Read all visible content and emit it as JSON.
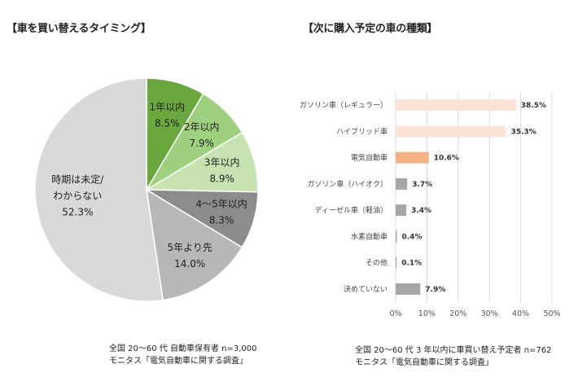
{
  "left_panel": {
    "title": "【車を買い替えるタイミング】",
    "note_line1": "全国 20～60 代 自動車保有者  n=3,000",
    "note_line2": "モニタス「電気自動車に関する調査」"
  },
  "right_panel": {
    "title": "【次に購入予定の車の種類】",
    "note_line1": "全国 20～60 代 3 年以内に車買い替え予定者  n=762",
    "note_line2": "モニタス「電気自動車に関する調査」"
  },
  "chart_data": [
    {
      "type": "pie",
      "title": "【車を買い替えるタイミング】",
      "unit": "%",
      "slices": [
        {
          "label": "1年以内",
          "value": 8.5,
          "display": "8.5%",
          "color": "#6aa83f"
        },
        {
          "label": "2年以内",
          "value": 7.9,
          "display": "7.9%",
          "color": "#9fd07f"
        },
        {
          "label": "3年以内",
          "value": 8.9,
          "display": "8.9%",
          "color": "#c6e3b1"
        },
        {
          "label": "4～5年以内",
          "value": 8.3,
          "display": "8.3%",
          "color": "#8c8c8c"
        },
        {
          "label": "5年より先",
          "value": 14.0,
          "display": "14.0%",
          "color": "#b7b7b7"
        },
        {
          "label": "時期は未定/わからない",
          "label_lines": [
            "時期は未定/",
            "わからない"
          ],
          "value": 52.3,
          "display": "52.3%",
          "color": "#d9d9d9"
        }
      ]
    },
    {
      "type": "bar",
      "orientation": "horizontal",
      "title": "【次に購入予定の車の種類】",
      "categories": [
        "ガソリン車（レギュラー）",
        "ハイブリッド車",
        "電気自動車",
        "ガソリン車（ハイオク）",
        "ディーゼル車（軽油）",
        "水素自動車",
        "その他",
        "決めていない"
      ],
      "values": [
        38.5,
        35.3,
        10.6,
        3.7,
        3.4,
        0.4,
        0.1,
        7.9
      ],
      "value_labels": [
        "38.5%",
        "35.3%",
        "10.6%",
        "3.7%",
        "3.4%",
        "0.4%",
        "0.1%",
        "7.9%"
      ],
      "bar_colors": [
        "#fbe4d6",
        "#fbe4d6",
        "#f4b183",
        "#a6a6a6",
        "#a6a6a6",
        "#a6a6a6",
        "#a6a6a6",
        "#a6a6a6"
      ],
      "xlim": [
        0,
        50
      ],
      "xticks": [
        0,
        10,
        20,
        30,
        40,
        50
      ],
      "xtick_labels": [
        "0%",
        "10%",
        "20%",
        "30%",
        "40%",
        "50%"
      ],
      "grid": true
    }
  ]
}
